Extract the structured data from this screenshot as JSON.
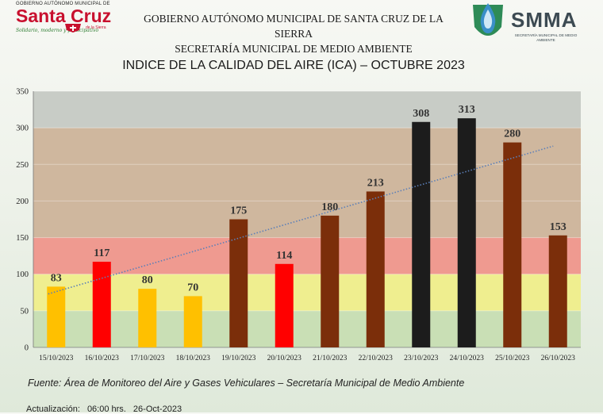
{
  "header": {
    "left_logo": {
      "small_text": "GOBIERNO AUTÓNOMO MUNICIPAL DE",
      "brand": "Santa Cruz",
      "sub": "de la Sierra",
      "slogan": "Solidario, moderno y participativo"
    },
    "title_line1": "GOBIERNO AUTÓNOMO MUNICIPAL DE SANTA CRUZ DE LA SIERRA",
    "title_line2": "SECRETARÍA MUNICIPAL DE MEDIO AMBIENTE",
    "right_logo": {
      "word": "SMMA",
      "sub": "SECRETARÍA MUNICIPAL DE MEDIO AMBIENTE"
    }
  },
  "colors": {
    "band_good": "#c9dfb5",
    "band_moderate": "#efee8f",
    "band_unhealthy": "#ef9a90",
    "band_very_unhealthy": "#cfb79e",
    "band_hazardous": "#c8ccc6",
    "bar_orange": "#ffc000",
    "bar_red": "#ff0000",
    "bar_brown": "#7b2e0a",
    "bar_black": "#1c1c1c",
    "trend": "#5b7fb8"
  },
  "chart_data": {
    "type": "bar",
    "title": "INDICE DE LA CALIDAD DEL AIRE (ICA) – OCTUBRE 2023",
    "categories": [
      "15/10/2023",
      "16/10/2023",
      "17/10/2023",
      "18/10/2023",
      "19/10/2023",
      "20/10/2023",
      "21/10/2023",
      "22/10/2023",
      "23/10/2023",
      "24/10/2023",
      "25/10/2023",
      "26/10/2023"
    ],
    "values": [
      83,
      117,
      80,
      70,
      175,
      114,
      180,
      213,
      308,
      313,
      280,
      153
    ],
    "bar_colors": [
      "orange",
      "red",
      "orange",
      "orange",
      "brown",
      "red",
      "brown",
      "brown",
      "black",
      "black",
      "brown",
      "brown"
    ],
    "ylim": [
      0,
      350
    ],
    "yticks": [
      0,
      50,
      100,
      150,
      200,
      250,
      300,
      350
    ],
    "bands": [
      {
        "from": 0,
        "to": 50,
        "color": "band_good"
      },
      {
        "from": 50,
        "to": 100,
        "color": "band_moderate"
      },
      {
        "from": 100,
        "to": 150,
        "color": "band_unhealthy"
      },
      {
        "from": 150,
        "to": 300,
        "color": "band_very_unhealthy"
      },
      {
        "from": 300,
        "to": 350,
        "color": "band_hazardous"
      }
    ],
    "trendline": {
      "start": 73,
      "end": 275,
      "style": "dotted"
    },
    "xlabel": "",
    "ylabel": "",
    "grid": true
  },
  "footer": {
    "source_label": "Fuente:",
    "source_text": "Área de Monitoreo del Aire y Gases Vehiculares – Secretaría Municipal de Medio Ambiente",
    "update_label": "Actualización:",
    "update_time": "06:00 hrs.",
    "update_date": "26-Oct-2023"
  }
}
